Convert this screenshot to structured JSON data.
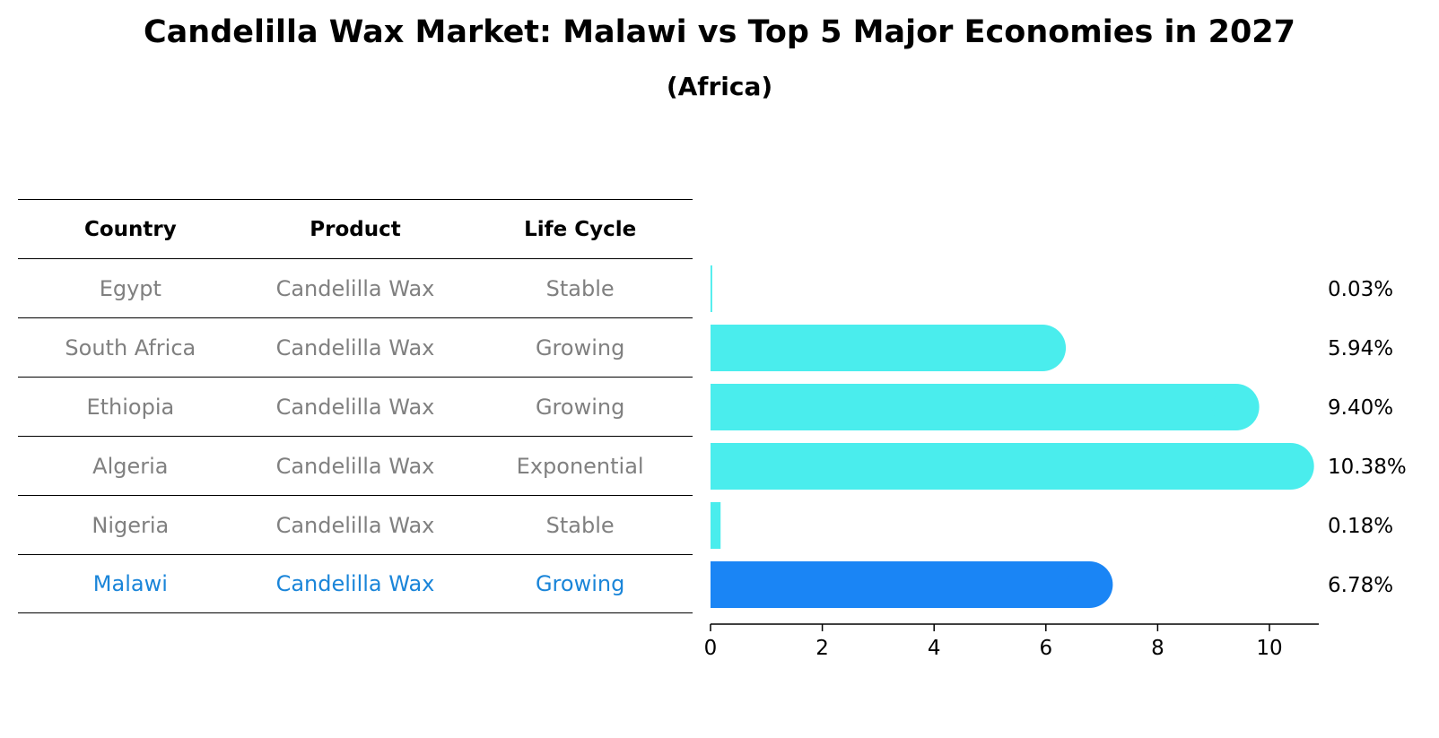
{
  "chart_data": {
    "type": "bar",
    "orientation": "horizontal",
    "title": "Candelilla Wax Market: Malawi vs Top 5 Major Economies in 2027",
    "subtitle": "(Africa)",
    "table": {
      "headers": [
        "Country",
        "Product",
        "Life Cycle"
      ],
      "rows": [
        {
          "country": "Egypt",
          "product": "Candelilla Wax",
          "life_cycle": "Stable"
        },
        {
          "country": "South Africa",
          "product": "Candelilla Wax",
          "life_cycle": "Growing"
        },
        {
          "country": "Ethiopia",
          "product": "Candelilla Wax",
          "life_cycle": "Growing"
        },
        {
          "country": "Algeria",
          "product": "Candelilla Wax",
          "life_cycle": "Exponential"
        },
        {
          "country": "Nigeria",
          "product": "Candelilla Wax",
          "life_cycle": "Stable"
        },
        {
          "country": "Malawi",
          "product": "Candelilla Wax",
          "life_cycle": "Growing"
        }
      ]
    },
    "categories": [
      "Egypt",
      "South Africa",
      "Ethiopia",
      "Algeria",
      "Nigeria",
      "Malawi"
    ],
    "values": [
      0.03,
      5.94,
      9.4,
      10.38,
      0.18,
      6.78
    ],
    "value_labels": [
      "0.03%",
      "5.94%",
      "9.40%",
      "10.38%",
      "0.18%",
      "6.78%"
    ],
    "highlight": "Malawi",
    "xlim": [
      0,
      10.9
    ],
    "xticks": [
      0,
      2,
      4,
      6,
      8,
      10
    ],
    "xtick_labels": [
      "0",
      "2",
      "4",
      "6",
      "8",
      "10"
    ],
    "xlabel": "",
    "ylabel": "",
    "colors": {
      "bar": "#4aeded",
      "highlight_bar": "#1a85f5",
      "highlight_text": "#1a85d9",
      "text_muted": "#808080"
    }
  }
}
